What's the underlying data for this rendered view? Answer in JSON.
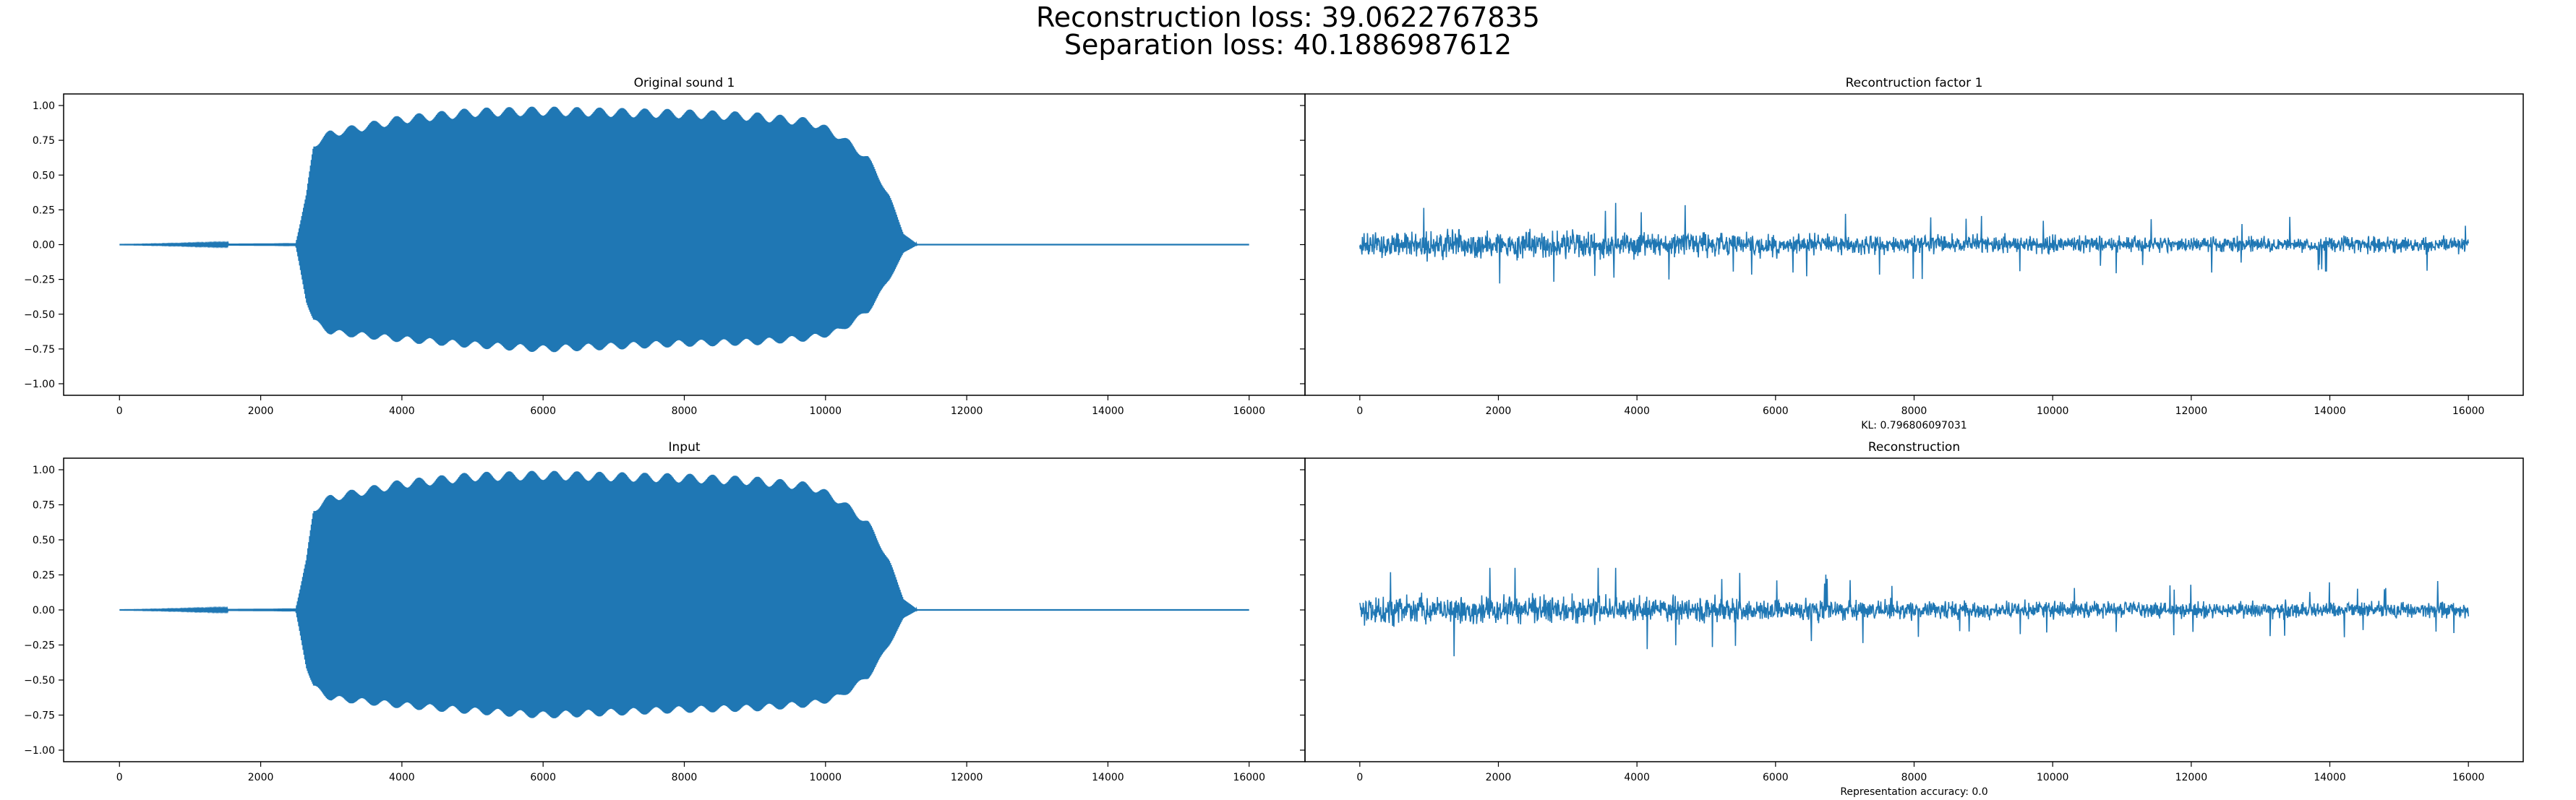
{
  "figure": {
    "suptitle_line1": "Reconstruction loss: 39.0622767835",
    "suptitle_line2": "Separation loss: 40.1886987612",
    "series_color": "#1f77b4"
  },
  "chart_data": [
    {
      "type": "line",
      "title": "Original sound 1",
      "xlabel": "",
      "ylabel": "",
      "xlim": [
        0,
        16000
      ],
      "ylim": [
        -1.0,
        1.0
      ],
      "xticks": [
        0,
        2000,
        4000,
        6000,
        8000,
        10000,
        12000,
        14000,
        16000
      ],
      "yticks": [
        -1.0,
        -0.75,
        -0.5,
        -0.25,
        0.0,
        0.25,
        0.5,
        0.75,
        1.0
      ],
      "ytick_labels": [
        "−1.00",
        "−0.75",
        "−0.50",
        "−0.25",
        "0.00",
        "0.25",
        "0.50",
        "0.75",
        "1.00"
      ],
      "show_yticklabels": true,
      "signal": "tone",
      "envelope": {
        "x": [
          0,
          2500,
          2650,
          2750,
          3000,
          4000,
          5000,
          6000,
          7000,
          8000,
          9000,
          9800,
          10200,
          10600,
          10900,
          11100,
          11300,
          16000
        ],
        "upper": [
          0.0,
          0.01,
          0.35,
          0.72,
          0.8,
          0.9,
          0.95,
          0.96,
          0.95,
          0.94,
          0.92,
          0.88,
          0.78,
          0.62,
          0.35,
          0.08,
          0.0,
          0.0
        ],
        "lower": [
          0.0,
          -0.01,
          -0.4,
          -0.55,
          -0.63,
          -0.68,
          -0.72,
          -0.75,
          -0.73,
          -0.71,
          -0.7,
          -0.67,
          -0.62,
          -0.48,
          -0.25,
          -0.06,
          0.0,
          0.0
        ]
      },
      "grid": false
    },
    {
      "type": "line",
      "title": "Recontruction factor 1",
      "xlabel": "KL: 0.796806097031",
      "ylabel": "",
      "xlim": [
        0,
        16000
      ],
      "ylim": [
        -1.0,
        1.0
      ],
      "xticks": [
        0,
        2000,
        4000,
        6000,
        8000,
        10000,
        12000,
        14000,
        16000
      ],
      "show_yticklabels": false,
      "signal": "noise",
      "noise_envelope": {
        "x": [
          0,
          3000,
          6000,
          9000,
          12000,
          16000
        ],
        "amplitude": [
          0.15,
          0.14,
          0.11,
          0.09,
          0.08,
          0.08
        ]
      },
      "range": [
        -0.35,
        0.3
      ],
      "grid": false
    },
    {
      "type": "line",
      "title": "Input",
      "xlabel": "",
      "ylabel": "",
      "xlim": [
        0,
        16000
      ],
      "ylim": [
        -1.0,
        1.0
      ],
      "xticks": [
        0,
        2000,
        4000,
        6000,
        8000,
        10000,
        12000,
        14000,
        16000
      ],
      "yticks": [
        -1.0,
        -0.75,
        -0.5,
        -0.25,
        0.0,
        0.25,
        0.5,
        0.75,
        1.0
      ],
      "ytick_labels": [
        "−1.00",
        "−0.75",
        "−0.50",
        "−0.25",
        "0.00",
        "0.25",
        "0.50",
        "0.75",
        "1.00"
      ],
      "show_yticklabels": true,
      "signal": "tone",
      "envelope": {
        "x": [
          0,
          2500,
          2650,
          2750,
          3000,
          4000,
          5000,
          6000,
          7000,
          8000,
          9000,
          9800,
          10200,
          10600,
          10900,
          11100,
          11300,
          16000
        ],
        "upper": [
          0.0,
          0.01,
          0.35,
          0.72,
          0.8,
          0.9,
          0.95,
          0.96,
          0.95,
          0.94,
          0.92,
          0.88,
          0.78,
          0.62,
          0.35,
          0.08,
          0.0,
          0.0
        ],
        "lower": [
          0.0,
          -0.01,
          -0.4,
          -0.55,
          -0.63,
          -0.68,
          -0.72,
          -0.75,
          -0.73,
          -0.71,
          -0.7,
          -0.67,
          -0.62,
          -0.48,
          -0.25,
          -0.06,
          0.0,
          0.0
        ]
      },
      "grid": false
    },
    {
      "type": "line",
      "title": "Reconstruction",
      "xlabel": "Representation accuracy: 0.0",
      "ylabel": "",
      "xlim": [
        0,
        16000
      ],
      "ylim": [
        -1.0,
        1.0
      ],
      "xticks": [
        0,
        2000,
        4000,
        6000,
        8000,
        10000,
        12000,
        14000,
        16000
      ],
      "show_yticklabels": false,
      "signal": "noise",
      "noise_envelope": {
        "x": [
          0,
          3000,
          6000,
          9000,
          12000,
          16000
        ],
        "amplitude": [
          0.15,
          0.14,
          0.11,
          0.09,
          0.08,
          0.08
        ]
      },
      "range": [
        -0.35,
        0.3
      ],
      "grid": false
    }
  ]
}
